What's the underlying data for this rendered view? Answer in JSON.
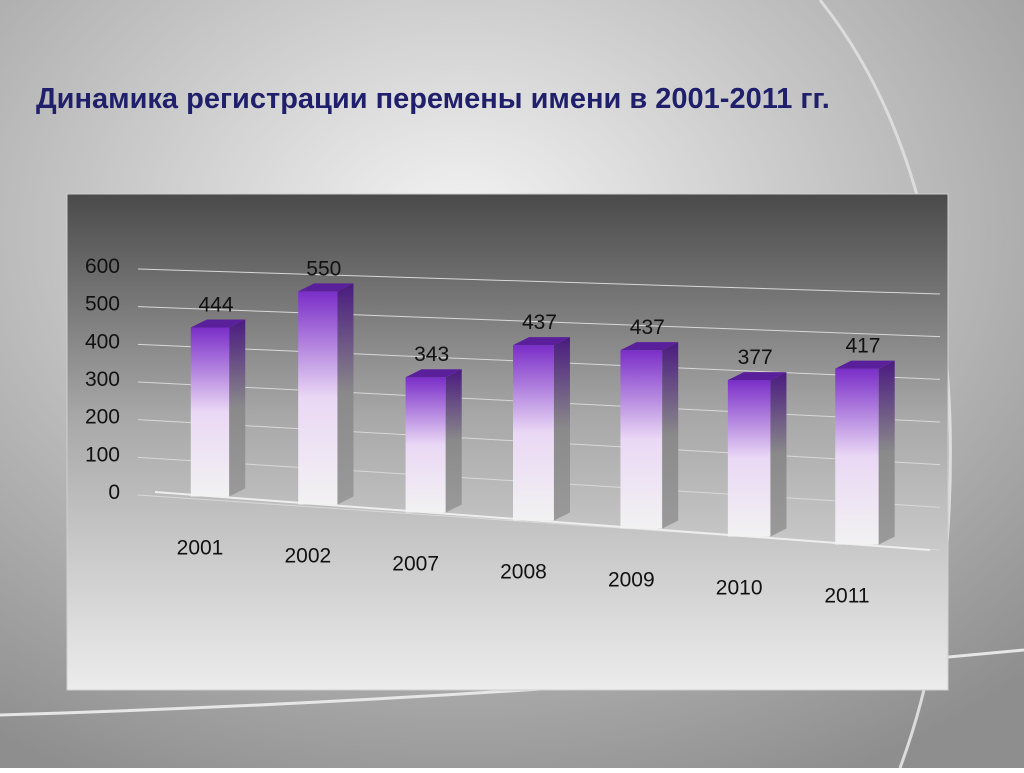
{
  "chart_data": {
    "type": "bar3d",
    "title": "Динамика регистрации перемены имени в 2001-2011 гг.",
    "categories": [
      "2001",
      "2002",
      "2007",
      "2008",
      "2009",
      "2010",
      "2011"
    ],
    "values": [
      444,
      550,
      343,
      437,
      437,
      377,
      417
    ],
    "color": "#7030a0",
    "ylim": [
      0,
      600
    ],
    "yticks": [
      0,
      100,
      200,
      300,
      400,
      500,
      600
    ],
    "grid": true
  }
}
